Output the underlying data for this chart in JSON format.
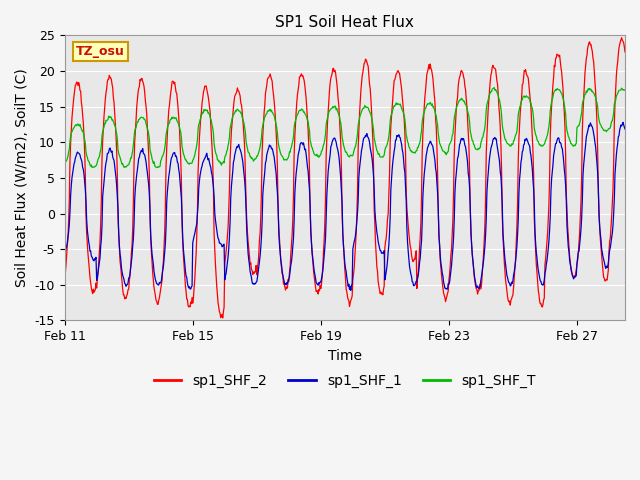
{
  "title": "SP1 Soil Heat Flux",
  "xlabel": "Time",
  "ylabel": "Soil Heat Flux (W/m2), SoilT (C)",
  "ylim": [
    -15,
    25
  ],
  "yticks": [
    -15,
    -10,
    -5,
    0,
    5,
    10,
    15,
    20,
    25
  ],
  "xlim_days": [
    0,
    17.5
  ],
  "xticks_days": [
    0,
    4,
    8,
    12,
    16
  ],
  "xtick_labels": [
    "Feb 11",
    "Feb 15",
    "Feb 19",
    "Feb 23",
    "Feb 27"
  ],
  "legend_labels": [
    "sp1_SHF_2",
    "sp1_SHF_1",
    "sp1_SHF_T"
  ],
  "line_colors": [
    "#ff0000",
    "#0000cc",
    "#00bb00"
  ],
  "tz_label": "TZ_osu",
  "plot_bg": "#e8e8e8",
  "fig_bg": "#f5f5f5",
  "title_fontsize": 11,
  "axis_label_fontsize": 10,
  "tick_fontsize": 9,
  "legend_fontsize": 10,
  "shf2_peaks": [
    18.5,
    19.3,
    18.8,
    18.5,
    17.8,
    17.5,
    19.5,
    19.7,
    20.3,
    21.5,
    20.0,
    20.8,
    20.0,
    20.7,
    20.0,
    22.5,
    24.0,
    24.5
  ],
  "shf2_troughs": [
    -11.0,
    -12.0,
    -12.5,
    -13.0,
    -14.5,
    -8.5,
    -10.5,
    -11.0,
    -12.5,
    -11.5,
    -6.5,
    -12.0,
    -11.0,
    -12.5,
    -13.0,
    -9.0,
    -9.5,
    -7.0
  ],
  "shf1_peaks": [
    8.5,
    9.0,
    8.8,
    8.5,
    8.0,
    9.5,
    9.5,
    10.0,
    10.5,
    11.0,
    11.0,
    10.0,
    10.5,
    10.5,
    10.5,
    10.5,
    12.5,
    12.5
  ],
  "shf1_troughs": [
    -6.5,
    -10.0,
    -10.0,
    -10.5,
    -4.5,
    -10.0,
    -10.0,
    -10.0,
    -10.5,
    -5.5,
    -10.0,
    -10.5,
    -10.5,
    -10.0,
    -10.0,
    -9.0,
    -7.5,
    -6.5
  ],
  "shft_peaks": [
    12.5,
    13.5,
    13.5,
    13.5,
    14.5,
    14.5,
    14.5,
    14.5,
    15.0,
    15.0,
    15.5,
    15.5,
    16.0,
    17.5,
    16.5,
    17.5,
    17.5
  ],
  "shft_troughs": [
    6.5,
    6.5,
    6.5,
    7.0,
    7.0,
    7.5,
    7.5,
    8.0,
    8.0,
    8.0,
    8.5,
    8.5,
    9.0,
    9.5,
    9.5,
    9.5,
    11.5
  ]
}
